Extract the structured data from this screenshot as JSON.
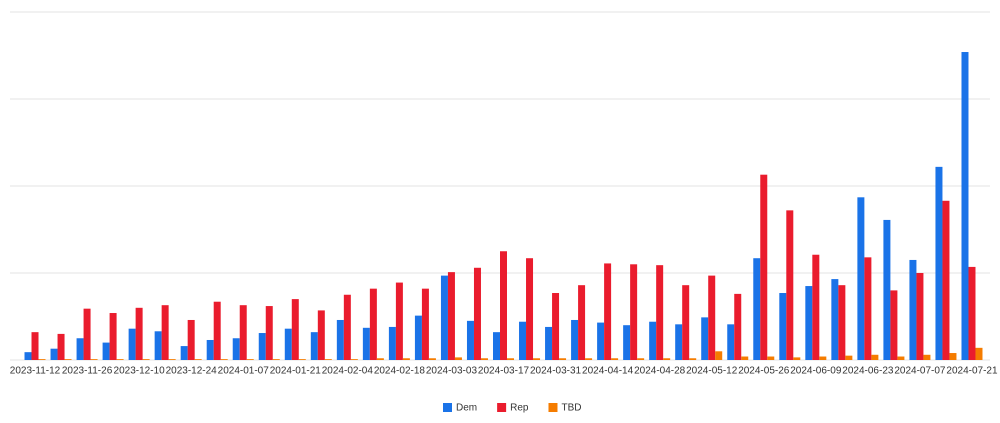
{
  "chart_data": {
    "type": "bar",
    "categories": [
      "2023-11-12",
      null,
      "2023-11-26",
      null,
      "2023-12-10",
      null,
      "2023-12-24",
      null,
      "2024-01-07",
      null,
      "2024-01-21",
      null,
      "2024-02-04",
      null,
      "2024-02-18",
      null,
      "2024-03-03",
      null,
      "2024-03-17",
      null,
      "2024-03-31",
      null,
      "2024-04-14",
      null,
      "2024-04-28",
      null,
      "2024-05-12",
      null,
      "2024-05-26",
      null,
      "2024-06-09",
      null,
      "2024-06-23",
      null,
      "2024-07-07",
      null,
      "2024-07-21"
    ],
    "series": [
      {
        "name": "Dem",
        "color": "#1a73e8",
        "values": [
          9,
          13,
          25,
          20,
          36,
          33,
          16,
          23,
          25,
          31,
          36,
          32,
          46,
          37,
          38,
          51,
          97,
          45,
          32,
          44,
          38,
          46,
          43,
          40,
          44,
          41,
          49,
          41,
          117,
          77,
          85,
          93,
          187,
          161,
          115,
          222,
          354
        ]
      },
      {
        "name": "Rep",
        "color": "#ea1c2d",
        "values": [
          32,
          30,
          59,
          54,
          60,
          63,
          46,
          67,
          63,
          62,
          70,
          57,
          75,
          82,
          89,
          82,
          101,
          106,
          125,
          117,
          77,
          86,
          111,
          110,
          109,
          86,
          97,
          76,
          213,
          172,
          121,
          86,
          118,
          80,
          100,
          183,
          107
        ]
      },
      {
        "name": "TBD",
        "color": "#f57c00",
        "values": [
          1,
          1,
          1,
          1,
          1,
          1,
          1,
          1,
          1,
          1,
          1,
          1,
          1,
          2,
          2,
          2,
          3,
          2,
          2,
          2,
          2,
          2,
          2,
          2,
          2,
          2,
          10,
          4,
          4,
          3,
          4,
          5,
          6,
          4,
          6,
          8,
          14
        ]
      }
    ],
    "ylim": [
      0,
      400
    ],
    "yticks": [
      0,
      100,
      200,
      300,
      400
    ],
    "grid": true,
    "legend": "bottom"
  }
}
